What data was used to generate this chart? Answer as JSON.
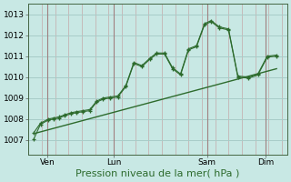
{
  "background_color": "#c8e8e4",
  "grid_color_h": "#a8ccc8",
  "grid_color_v": "#c4a8a8",
  "line_color": "#2d6b2d",
  "marker_color": "#2d6b2d",
  "xlabel": "Pression niveau de la mer( hPa )",
  "xlabel_fontsize": 8,
  "tick_label_fontsize": 6.5,
  "ylim": [
    1006.3,
    1013.5
  ],
  "yticks": [
    1007,
    1008,
    1009,
    1010,
    1011,
    1012,
    1013
  ],
  "day_labels": [
    "Ven",
    "Lun",
    "Sam",
    "Dim"
  ],
  "day_positions": [
    0.5,
    3.0,
    6.5,
    8.7
  ],
  "vline_positions": [
    0.5,
    3.0,
    6.5,
    8.7
  ],
  "series1_x": [
    0.0,
    0.25,
    0.55,
    0.75,
    0.95,
    1.15,
    1.4,
    1.6,
    1.85,
    2.1,
    2.35,
    2.6,
    2.85,
    3.15,
    3.45,
    3.75,
    4.05,
    4.35,
    4.6,
    4.9,
    5.2,
    5.5,
    5.8,
    6.1,
    6.4,
    6.65,
    6.95,
    7.3,
    7.65,
    8.05,
    8.4,
    8.75,
    9.1
  ],
  "series1_y": [
    1007.35,
    1007.8,
    1008.0,
    1008.05,
    1008.1,
    1008.2,
    1008.3,
    1008.35,
    1008.4,
    1008.45,
    1008.85,
    1009.0,
    1009.05,
    1009.1,
    1009.6,
    1010.7,
    1010.55,
    1010.9,
    1011.15,
    1011.15,
    1010.45,
    1010.15,
    1011.35,
    1011.5,
    1012.55,
    1012.7,
    1012.4,
    1012.3,
    1010.05,
    1010.0,
    1010.15,
    1011.0,
    1011.05
  ],
  "series2_x": [
    0.0,
    0.25,
    0.55,
    0.75,
    0.95,
    1.15,
    1.4,
    1.6,
    1.85,
    2.1,
    2.35,
    2.6,
    2.85,
    3.15,
    3.45,
    3.75,
    4.05,
    4.35,
    4.6,
    4.9,
    5.2,
    5.5,
    5.8,
    6.1,
    6.4,
    6.65,
    6.95,
    7.3,
    7.65,
    8.05,
    8.4,
    8.75,
    9.1
  ],
  "series2_y": [
    1007.05,
    1007.75,
    1007.95,
    1008.0,
    1008.05,
    1008.15,
    1008.25,
    1008.3,
    1008.35,
    1008.4,
    1008.8,
    1008.95,
    1009.0,
    1009.05,
    1009.55,
    1010.65,
    1010.5,
    1010.85,
    1011.1,
    1011.1,
    1010.4,
    1010.1,
    1011.3,
    1011.45,
    1012.5,
    1012.65,
    1012.35,
    1012.25,
    1010.0,
    1009.95,
    1010.1,
    1010.95,
    1011.0
  ],
  "trend_x": [
    0.0,
    9.1
  ],
  "trend_y": [
    1007.3,
    1010.4
  ],
  "xlim": [
    -0.2,
    9.5
  ]
}
